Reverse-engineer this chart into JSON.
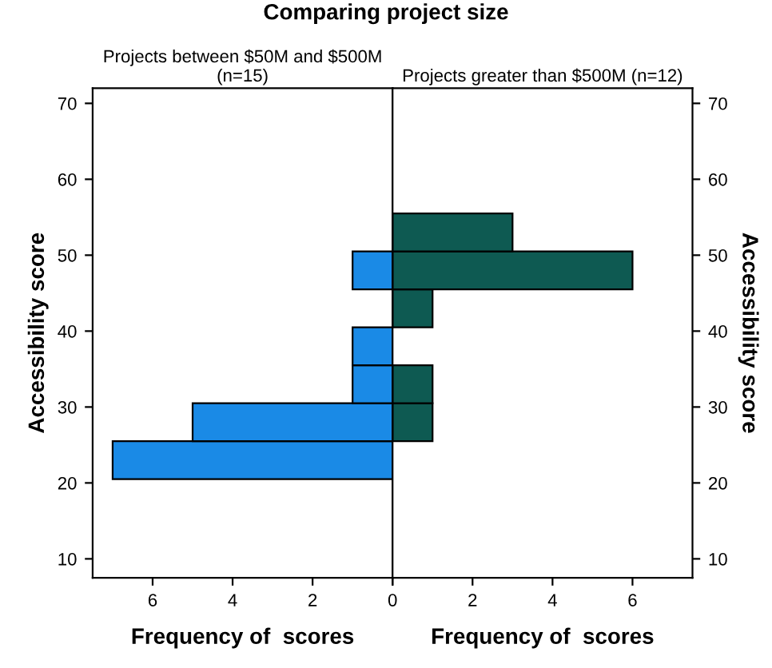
{
  "chart_data": [
    {
      "type": "histogram",
      "orientation": "horizontal",
      "title": "Comparing project size",
      "subtitle": "Projects between $50M and $500M\n(n=15)",
      "xlabel": "Frequency of  scores",
      "ylabel": "Accessibility score",
      "bins": [
        20.5,
        25.5,
        30.5,
        35.5,
        40.5,
        45.5,
        50.5,
        55.5
      ],
      "values": [
        7,
        5,
        1,
        1,
        null,
        1,
        null
      ],
      "color": "#1a8ae6",
      "xlim": [
        7.5,
        0
      ],
      "xticks": [
        6,
        4,
        2,
        0
      ],
      "ylim": [
        7.5,
        72
      ],
      "yticks": [
        10,
        20,
        30,
        40,
        50,
        60,
        70
      ],
      "grid": false
    },
    {
      "type": "histogram",
      "orientation": "horizontal",
      "subtitle": "Projects greater than $500M (n=12)",
      "xlabel": "Frequency of  scores",
      "ylabel": "Accessibility score",
      "bins": [
        20.5,
        25.5,
        30.5,
        35.5,
        40.5,
        45.5,
        50.5,
        55.5
      ],
      "values": [
        null,
        1,
        1,
        null,
        1,
        6,
        3
      ],
      "color": "#0e5a52",
      "xlim": [
        0,
        7.5
      ],
      "xticks": [
        {
          "value": 0,
          "label": null
        },
        2,
        4,
        6
      ],
      "ylim": [
        7.5,
        72
      ],
      "yticks": [
        10,
        20,
        30,
        40,
        50,
        60,
        70
      ],
      "grid": false
    }
  ]
}
